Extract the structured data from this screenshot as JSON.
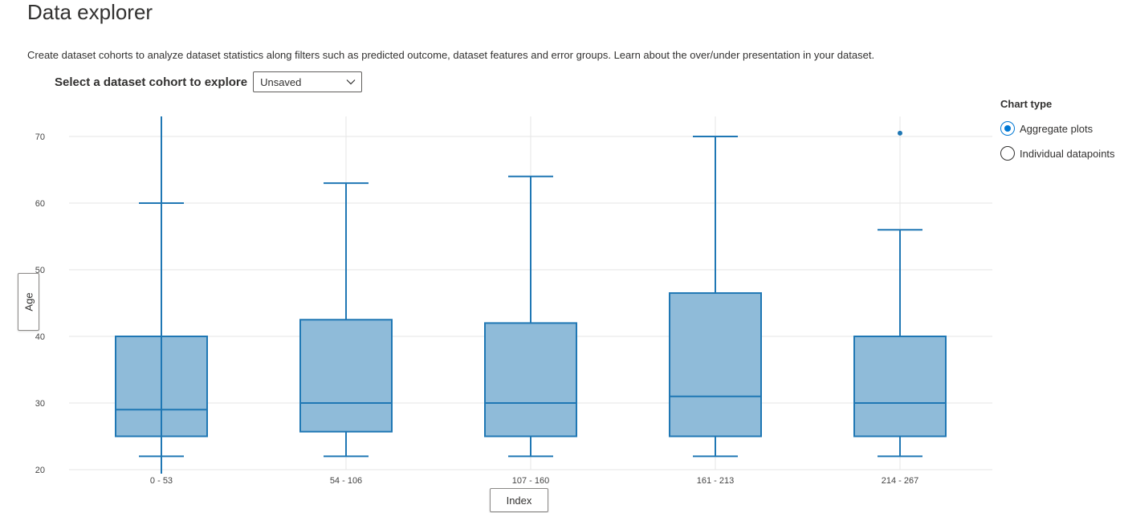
{
  "header": {
    "title": "Data explorer",
    "description": "Create dataset cohorts to analyze dataset statistics along filters such as predicted outcome, dataset features and error groups. Learn about the over/under presentation in your dataset."
  },
  "cohort_selector": {
    "label": "Select a dataset cohort to explore",
    "value": "Unsaved"
  },
  "axis_buttons": {
    "y_label": "Age",
    "x_label": "Index"
  },
  "chart_type_panel": {
    "label": "Chart type",
    "options": [
      {
        "label": "Aggregate plots",
        "selected": true
      },
      {
        "label": "Individual datapoints",
        "selected": false
      }
    ]
  },
  "colors": {
    "box_fill": "#8fbbd9",
    "box_stroke": "#1f77b4",
    "grid": "#e6e6e6",
    "radio_accent": "#0078d4"
  },
  "chart_data": {
    "type": "box",
    "xlabel": "Index",
    "ylabel": "Age",
    "ylim": [
      20,
      73
    ],
    "yticks": [
      20,
      30,
      40,
      50,
      60,
      70
    ],
    "grid": true,
    "categories": [
      "0 - 53",
      "54 - 106",
      "107 - 160",
      "161 - 213",
      "214 - 267"
    ],
    "boxes": [
      {
        "category": "0 - 53",
        "lower_whisker": 22,
        "q1": 25,
        "median": 29,
        "q3": 40,
        "upper_whisker": 60,
        "outliers": []
      },
      {
        "category": "54 - 106",
        "lower_whisker": 22,
        "q1": 25.7,
        "median": 30,
        "q3": 42.5,
        "upper_whisker": 63,
        "outliers": []
      },
      {
        "category": "107 - 160",
        "lower_whisker": 22,
        "q1": 25,
        "median": 30,
        "q3": 42,
        "upper_whisker": 64,
        "outliers": []
      },
      {
        "category": "161 - 213",
        "lower_whisker": 22,
        "q1": 25,
        "median": 31,
        "q3": 46.5,
        "upper_whisker": 70,
        "outliers": []
      },
      {
        "category": "214 - 267",
        "lower_whisker": 22,
        "q1": 25,
        "median": 30,
        "q3": 40,
        "upper_whisker": 56,
        "outliers": [
          70.5
        ]
      }
    ]
  }
}
